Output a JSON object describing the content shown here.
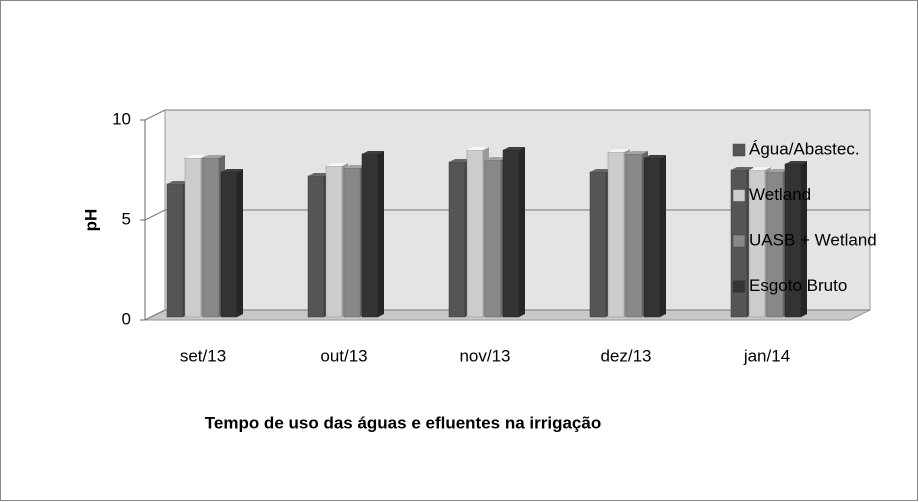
{
  "chart_data": {
    "type": "bar3d",
    "x_label": "Tempo de uso das águas e efluentes na irrigação",
    "y_label": "pH",
    "categories": [
      "set/13",
      "out/13",
      "nov/13",
      "dez/13",
      "jan/14"
    ],
    "series": [
      {
        "name": "Água/Abastec.",
        "color": "#555555",
        "values": [
          6.8,
          7.2,
          7.9,
          7.4,
          7.5
        ]
      },
      {
        "name": "Wetland",
        "color": "#cccccc",
        "values": [
          8.1,
          7.7,
          8.5,
          8.4,
          7.5
        ]
      },
      {
        "name": "UASB + Wetland",
        "color": "#888888",
        "values": [
          8.1,
          7.6,
          8.0,
          8.3,
          7.4
        ]
      },
      {
        "name": "Esgoto Bruto",
        "color": "#333333",
        "values": [
          7.4,
          8.3,
          8.5,
          8.1,
          7.8
        ]
      }
    ],
    "ylim": [
      0,
      10
    ],
    "yticks": [
      0,
      5,
      10
    ],
    "grid": true,
    "legend": "right"
  }
}
